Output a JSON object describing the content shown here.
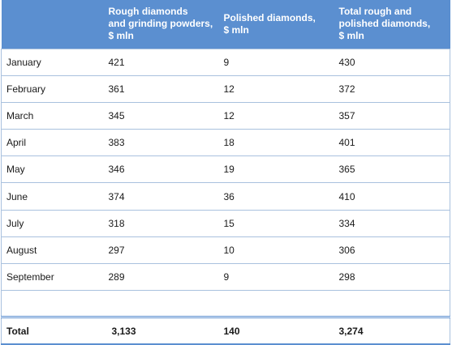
{
  "table": {
    "headers": [
      "",
      "Rough diamonds and grinding powders, $ mln",
      "Polished diamonds, $ mln",
      "Total rough and polished diamonds, $ mln"
    ],
    "header_lines": [
      "",
      "Rough diamonds\nand grinding powders,\n$ mln",
      "Polished diamonds,\n$ mln",
      "Total rough and\npolished diamonds,\n$ mln"
    ],
    "rows": [
      [
        "January",
        "421",
        "9",
        "430"
      ],
      [
        "February",
        "361",
        "12",
        "372"
      ],
      [
        "March",
        "345",
        "12",
        "357"
      ],
      [
        "April",
        "383",
        "18",
        "401"
      ],
      [
        "May",
        "346",
        "19",
        "365"
      ],
      [
        "June",
        "374",
        "36",
        "410"
      ],
      [
        "July",
        "318",
        "15",
        "334"
      ],
      [
        "August",
        "297",
        "10",
        "306"
      ],
      [
        "September",
        "289",
        "9",
        "298"
      ]
    ],
    "total": [
      "Total",
      "3,133",
      "140",
      "3,274"
    ]
  },
  "colors": {
    "header_bg": "#5b8fd0",
    "header_text": "#ffffff",
    "grid": "#a9c1de"
  }
}
